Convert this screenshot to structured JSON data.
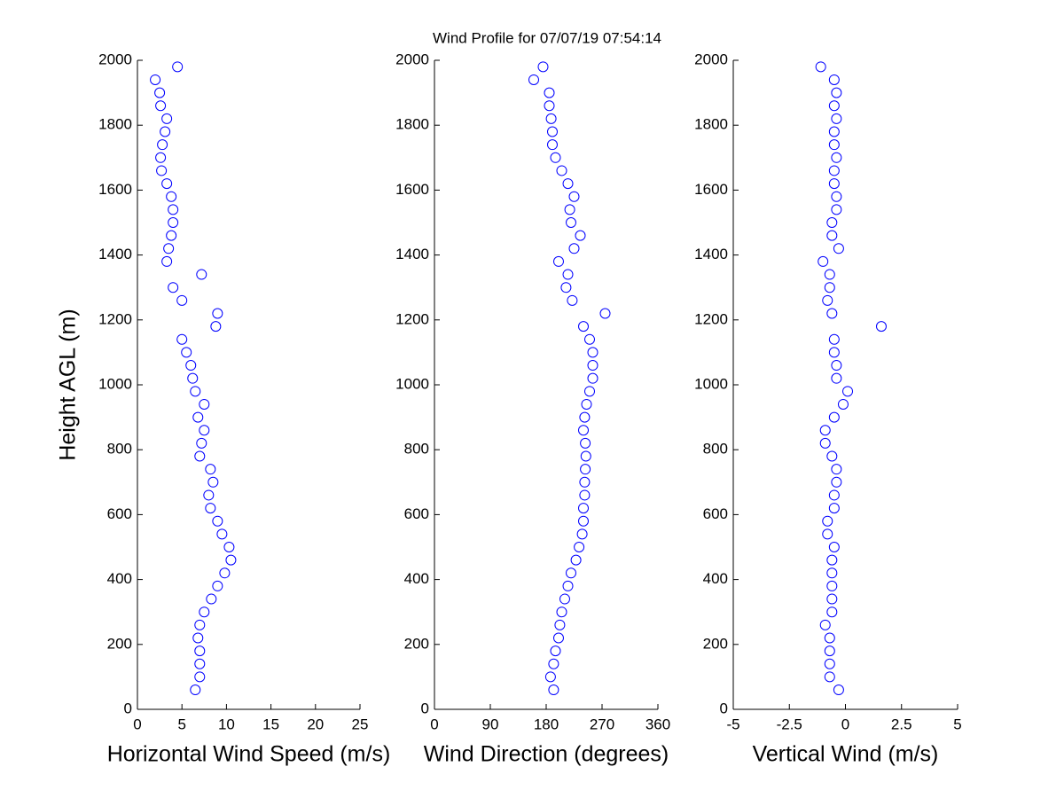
{
  "title": "Wind Profile for  07/07/19 07:54:14",
  "chart_data": [
    {
      "type": "scatter",
      "xlabel": "Horizontal Wind Speed (m/s)",
      "ylabel": "Height AGL (m)",
      "color": "#0000ff",
      "xlim": [
        0,
        25
      ],
      "xticks": [
        0,
        5,
        10,
        15,
        20,
        25
      ],
      "ylim": [
        0,
        2000
      ],
      "yticks": [
        0,
        200,
        400,
        600,
        800,
        1000,
        1200,
        1400,
        1600,
        1800,
        2000
      ],
      "x": [
        6.5,
        7,
        7,
        7,
        6.8,
        7,
        7.5,
        8.3,
        9,
        9.8,
        10.5,
        10.3,
        9.5,
        9,
        8.2,
        8,
        8.5,
        8.2,
        7,
        7.2,
        7.5,
        6.8,
        7.5,
        6.5,
        6.2,
        6,
        5.5,
        5,
        8.8,
        9,
        5,
        4,
        7.2,
        3.3,
        3.5,
        3.8,
        4,
        4,
        3.8,
        3.3,
        2.7,
        2.6,
        2.8,
        3.1,
        3.3,
        2.6,
        2.5,
        2,
        4.5
      ],
      "values": [
        60,
        100,
        140,
        180,
        220,
        260,
        300,
        340,
        380,
        420,
        460,
        500,
        540,
        580,
        620,
        660,
        700,
        740,
        780,
        820,
        860,
        900,
        940,
        980,
        1020,
        1060,
        1100,
        1140,
        1180,
        1220,
        1260,
        1300,
        1340,
        1380,
        1420,
        1460,
        1500,
        1540,
        1580,
        1620,
        1660,
        1700,
        1740,
        1780,
        1820,
        1860,
        1900,
        1940,
        1980
      ]
    },
    {
      "type": "scatter",
      "xlabel": "Wind Direction (degrees)",
      "color": "#0000ff",
      "xlim": [
        0,
        360
      ],
      "xticks": [
        0,
        90,
        180,
        270,
        360
      ],
      "ylim": [
        0,
        2000
      ],
      "yticks": [
        0,
        200,
        400,
        600,
        800,
        1000,
        1200,
        1400,
        1600,
        1800,
        2000
      ],
      "x": [
        192,
        187,
        192,
        195,
        200,
        202,
        205,
        210,
        215,
        220,
        228,
        233,
        238,
        240,
        240,
        242,
        242,
        243,
        244,
        243,
        240,
        242,
        245,
        250,
        255,
        255,
        255,
        250,
        240,
        275,
        222,
        212,
        215,
        200,
        225,
        235,
        220,
        218,
        225,
        215,
        205,
        195,
        190,
        190,
        188,
        185,
        185,
        160,
        175
      ],
      "values": [
        60,
        100,
        140,
        180,
        220,
        260,
        300,
        340,
        380,
        420,
        460,
        500,
        540,
        580,
        620,
        660,
        700,
        740,
        780,
        820,
        860,
        900,
        940,
        980,
        1020,
        1060,
        1100,
        1140,
        1180,
        1220,
        1260,
        1300,
        1340,
        1380,
        1420,
        1460,
        1500,
        1540,
        1580,
        1620,
        1660,
        1700,
        1740,
        1780,
        1820,
        1860,
        1900,
        1940,
        1980
      ]
    },
    {
      "type": "scatter",
      "xlabel": "Vertical Wind (m/s)",
      "color": "#0000ff",
      "xlim": [
        -5,
        5
      ],
      "xticks": [
        -5,
        -2.5,
        0,
        2.5,
        5
      ],
      "ylim": [
        0,
        2000
      ],
      "yticks": [
        0,
        200,
        400,
        600,
        800,
        1000,
        1200,
        1400,
        1600,
        1800,
        2000
      ],
      "x": [
        -0.3,
        -0.7,
        -0.7,
        -0.7,
        -0.7,
        -0.9,
        -0.6,
        -0.6,
        -0.6,
        -0.6,
        -0.6,
        -0.5,
        -0.8,
        -0.8,
        -0.5,
        -0.5,
        -0.4,
        -0.4,
        -0.6,
        -0.9,
        -0.9,
        -0.5,
        -0.1,
        0.1,
        -0.4,
        -0.4,
        -0.5,
        -0.5,
        1.6,
        -0.6,
        -0.8,
        -0.7,
        -0.7,
        -1.0,
        -0.3,
        -0.6,
        -0.6,
        -0.4,
        -0.4,
        -0.5,
        -0.5,
        -0.4,
        -0.5,
        -0.5,
        -0.4,
        -0.5,
        -0.4,
        -0.5,
        -1.1
      ],
      "values": [
        60,
        100,
        140,
        180,
        220,
        260,
        300,
        340,
        380,
        420,
        460,
        500,
        540,
        580,
        620,
        660,
        700,
        740,
        780,
        820,
        860,
        900,
        940,
        980,
        1020,
        1060,
        1100,
        1140,
        1180,
        1220,
        1260,
        1300,
        1340,
        1380,
        1420,
        1460,
        1500,
        1540,
        1580,
        1620,
        1660,
        1700,
        1740,
        1780,
        1820,
        1860,
        1900,
        1940,
        1980
      ]
    }
  ]
}
